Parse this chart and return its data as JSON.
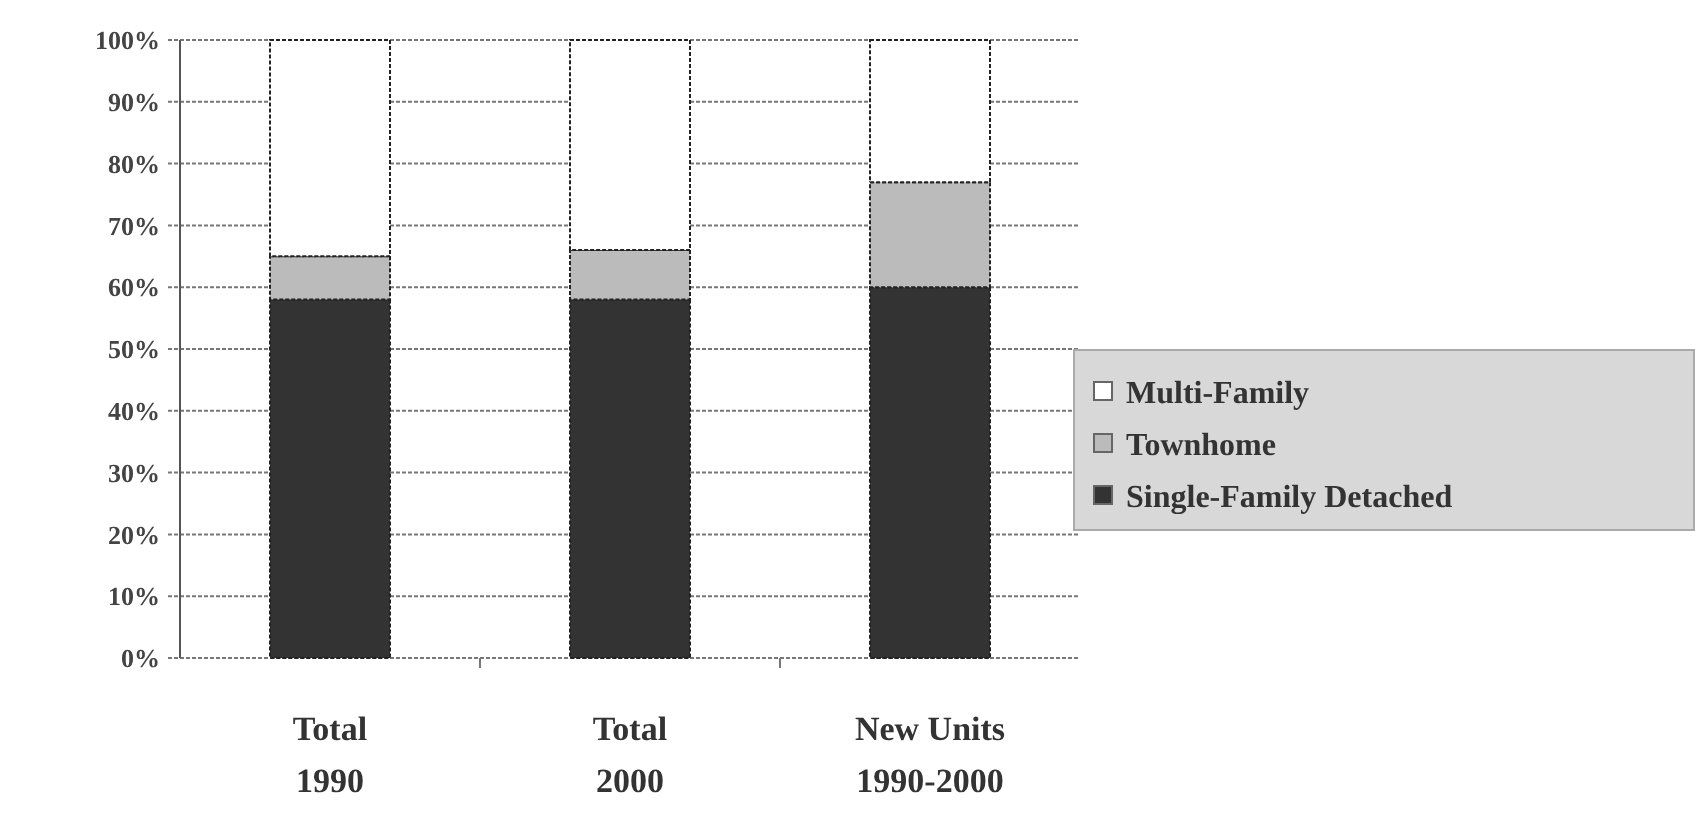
{
  "chart_data": {
    "type": "bar",
    "stacked": true,
    "categories": [
      "Total\n1990",
      "Total\n2000",
      "New Units\n1990-2000"
    ],
    "series": [
      {
        "name": "Single-Family Detached",
        "color": "#333333",
        "values": [
          58,
          58,
          60
        ]
      },
      {
        "name": "Townhome",
        "color": "#bbbbbb",
        "values": [
          7,
          8,
          17
        ]
      },
      {
        "name": "Multi-Family",
        "color": "#ffffff",
        "values": [
          35,
          34,
          23
        ]
      }
    ],
    "ylim": [
      0,
      100
    ],
    "yticks": [
      {
        "value": 0,
        "label": "0%"
      },
      {
        "value": 10,
        "label": "10%"
      },
      {
        "value": 20,
        "label": "20%"
      },
      {
        "value": 30,
        "label": "30%"
      },
      {
        "value": 40,
        "label": "40%"
      },
      {
        "value": 50,
        "label": "50%"
      },
      {
        "value": 60,
        "label": "60%"
      },
      {
        "value": 70,
        "label": "70%"
      },
      {
        "value": 80,
        "label": "80%"
      },
      {
        "value": 90,
        "label": "90%"
      },
      {
        "value": 100,
        "label": "100%"
      }
    ],
    "grid": "y",
    "legend": "right"
  }
}
